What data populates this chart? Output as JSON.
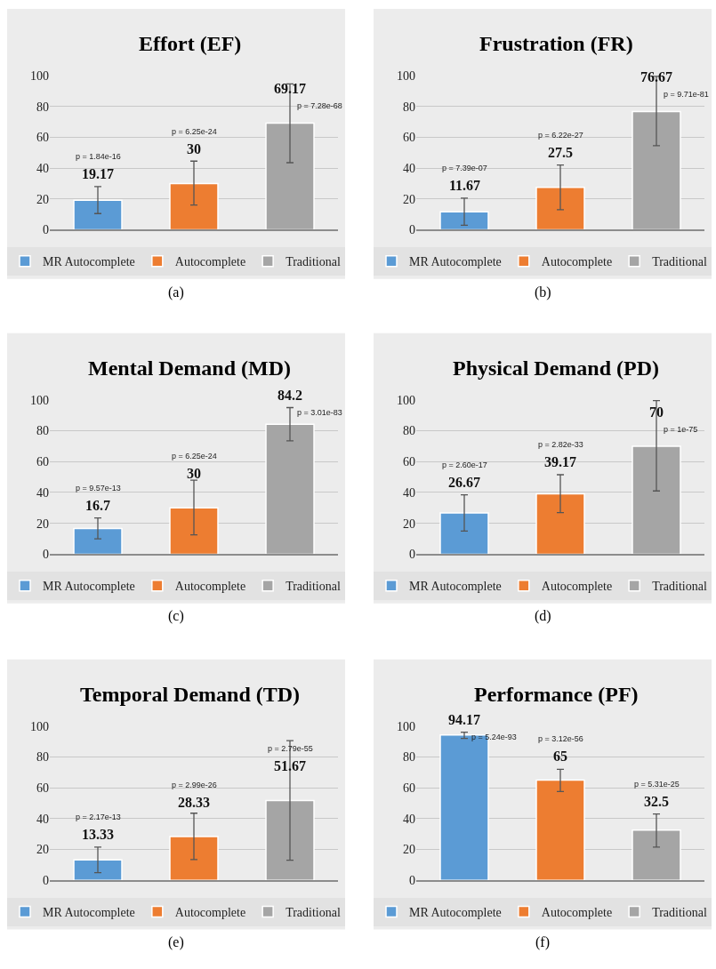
{
  "chart_data": [
    {
      "type": "bar",
      "title": "Effort (EF)",
      "categories": [
        null,
        null,
        null
      ],
      "ylim": [
        0,
        100
      ],
      "yticks": [
        0,
        20,
        40,
        60,
        80,
        100
      ],
      "grid": "y",
      "legend": "bottom",
      "tick_labels": "y",
      "data_labels": true,
      "series": [
        {
          "name": "MR Autocomplete",
          "color": "#5b9bd5",
          "values": [
            19.17,
            null,
            null
          ],
          "errors": [
            [
              10.5,
              28
            ],
            null,
            null
          ]
        },
        {
          "name": "Autocomplete",
          "color": "#ed7d31",
          "values": [
            null,
            30,
            null
          ],
          "errors": [
            null,
            [
              16,
              44.5
            ],
            null
          ]
        },
        {
          "name": "Traditional",
          "color": "#a5a5a5",
          "values": [
            null,
            null,
            69.17
          ],
          "errors": [
            null,
            null,
            [
              43.5,
              94.5
            ]
          ]
        }
      ],
      "annotations": [
        "p = 1.84e-16",
        "p = 6.25e-24",
        "p = 7.28e-68",
        "(a)"
      ]
    },
    {
      "type": "bar",
      "title": "Frustration (FR)",
      "categories": [
        null,
        null,
        null
      ],
      "ylim": [
        0,
        100
      ],
      "yticks": [
        0,
        20,
        40,
        60,
        80,
        100
      ],
      "grid": "y",
      "legend": "bottom",
      "tick_labels": "y",
      "data_labels": true,
      "series": [
        {
          "name": "MR Autocomplete",
          "color": "#5b9bd5",
          "values": [
            11.67,
            null,
            null
          ],
          "errors": [
            [
              3,
              20.5
            ],
            null,
            null
          ]
        },
        {
          "name": "Autocomplete",
          "color": "#ed7d31",
          "values": [
            null,
            27.5,
            null
          ],
          "errors": [
            null,
            [
              13,
              42
            ],
            null
          ]
        },
        {
          "name": "Traditional",
          "color": "#a5a5a5",
          "values": [
            null,
            null,
            76.67
          ],
          "errors": [
            null,
            null,
            [
              54.5,
              99.5
            ]
          ]
        }
      ],
      "annotations": [
        "p = 7.39e-07",
        "p = 6.22e-27",
        "p = 9.71e-81",
        "(b)"
      ]
    },
    {
      "type": "bar",
      "title": "Mental Demand (MD)",
      "categories": [
        null,
        null,
        null
      ],
      "ylim": [
        0,
        100
      ],
      "yticks": [
        0,
        20,
        40,
        60,
        80,
        100
      ],
      "grid": "y",
      "legend": "bottom",
      "tick_labels": "y",
      "data_labels": true,
      "series": [
        {
          "name": "MR Autocomplete",
          "color": "#5b9bd5",
          "values": [
            16.7,
            null,
            null
          ],
          "errors": [
            [
              10,
              23.5
            ],
            null,
            null
          ]
        },
        {
          "name": "Autocomplete",
          "color": "#ed7d31",
          "values": [
            null,
            30,
            null
          ],
          "errors": [
            null,
            [
              12.5,
              48
            ],
            null
          ]
        },
        {
          "name": "Traditional",
          "color": "#a5a5a5",
          "values": [
            null,
            null,
            84.2
          ],
          "errors": [
            null,
            null,
            [
              73.5,
              95
            ]
          ]
        }
      ],
      "annotations": [
        "p = 9.57e-13",
        "p = 6.25e-24",
        "p = 3.01e-83",
        "(c)"
      ]
    },
    {
      "type": "bar",
      "title": "Physical Demand (PD)",
      "categories": [
        null,
        null,
        null
      ],
      "ylim": [
        0,
        100
      ],
      "yticks": [
        0,
        20,
        40,
        60,
        80,
        100
      ],
      "grid": "y",
      "legend": "bottom",
      "tick_labels": "y",
      "data_labels": true,
      "series": [
        {
          "name": "MR Autocomplete",
          "color": "#5b9bd5",
          "values": [
            26.67,
            null,
            null
          ],
          "errors": [
            [
              15,
              38.5
            ],
            null,
            null
          ]
        },
        {
          "name": "Autocomplete",
          "color": "#ed7d31",
          "values": [
            null,
            39.17,
            null
          ],
          "errors": [
            null,
            [
              27,
              51.5
            ],
            null
          ]
        },
        {
          "name": "Traditional",
          "color": "#a5a5a5",
          "values": [
            null,
            null,
            70
          ],
          "errors": [
            null,
            null,
            [
              41,
              99.5
            ]
          ]
        }
      ],
      "annotations": [
        "p = 2.60e-17",
        "p = 2.82e-33",
        "p = 1e-75",
        "(d)"
      ]
    },
    {
      "type": "bar",
      "title": "Temporal Demand (TD)",
      "categories": [
        null,
        null,
        null
      ],
      "ylim": [
        0,
        100
      ],
      "yticks": [
        0,
        20,
        40,
        60,
        80,
        100
      ],
      "grid": "y",
      "legend": "bottom",
      "tick_labels": "y",
      "data_labels": true,
      "series": [
        {
          "name": "MR Autocomplete",
          "color": "#5b9bd5",
          "values": [
            13.33,
            null,
            null
          ],
          "errors": [
            [
              5,
              21.5
            ],
            null,
            null
          ]
        },
        {
          "name": "Autocomplete",
          "color": "#ed7d31",
          "values": [
            null,
            28.33,
            null
          ],
          "errors": [
            null,
            [
              13.5,
              43.5
            ],
            null
          ]
        },
        {
          "name": "Traditional",
          "color": "#a5a5a5",
          "values": [
            null,
            null,
            51.67
          ],
          "errors": [
            null,
            null,
            [
              13,
              90.5
            ]
          ]
        }
      ],
      "annotations": [
        "p = 2.17e-13",
        "p = 2.99e-26",
        "p = 2.79e-55",
        "(e)"
      ]
    },
    {
      "type": "bar",
      "title": "Performance (PF)",
      "categories": [
        null,
        null,
        null
      ],
      "ylim": [
        0,
        100
      ],
      "yticks": [
        0,
        20,
        40,
        60,
        80,
        100
      ],
      "grid": "y",
      "legend": "bottom",
      "tick_labels": "y",
      "data_labels": true,
      "series": [
        {
          "name": "MR Autocomplete",
          "color": "#5b9bd5",
          "values": [
            94.17,
            null,
            null
          ],
          "errors": [
            [
              92,
              96
            ],
            null,
            null
          ]
        },
        {
          "name": "Autocomplete",
          "color": "#ed7d31",
          "values": [
            null,
            65,
            null
          ],
          "errors": [
            null,
            [
              57.5,
              72
            ],
            null
          ]
        },
        {
          "name": "Traditional",
          "color": "#a5a5a5",
          "values": [
            null,
            null,
            32.5
          ],
          "errors": [
            null,
            null,
            [
              21.5,
              43
            ]
          ]
        }
      ],
      "annotations": [
        "p = 5.24e-93",
        "p = 3.12e-56",
        "p = 5.31e-25",
        "(f)"
      ]
    }
  ]
}
